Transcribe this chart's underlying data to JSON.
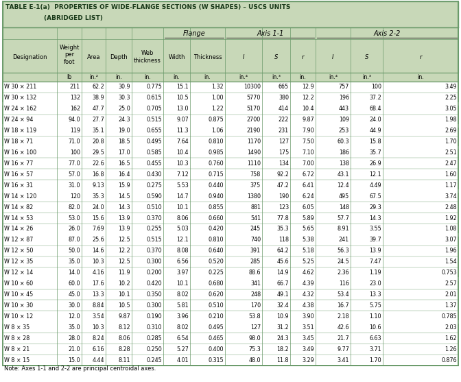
{
  "title_line1": "TABLE E-1(a)  PROPERTIES OF WIDE-FLANGE SECTIONS (W SHAPES) – USCS UNITS",
  "title_line2": "(ABRIDGED LIST)",
  "note": "Note: Axes 1-1 and 2-2 are principal centroidal axes.",
  "header_bg": "#c8d8b8",
  "border_color": "#6a9a6a",
  "col_units": [
    "",
    "lb",
    "in.²",
    "in.",
    "in.",
    "in.",
    "in.",
    "in.⁴",
    "in.³",
    "in.",
    "in.⁴",
    "in.³",
    "in."
  ],
  "rows": [
    [
      "W 30 × 211",
      "211",
      "62.2",
      "30.9",
      "0.775",
      "15.1",
      "1.32",
      "10300",
      "665",
      "12.9",
      "757",
      "100",
      "3.49"
    ],
    [
      "W 30 × 132",
      "132",
      "38.9",
      "30.3",
      "0.615",
      "10.5",
      "1.00",
      "5770",
      "380",
      "12.2",
      "196",
      "37.2",
      "2.25"
    ],
    [
      "W 24 × 162",
      "162",
      "47.7",
      "25.0",
      "0.705",
      "13.0",
      "1.22",
      "5170",
      "414",
      "10.4",
      "443",
      "68.4",
      "3.05"
    ],
    [
      "W 24 × 94",
      "94.0",
      "27.7",
      "24.3",
      "0.515",
      "9.07",
      "0.875",
      "2700",
      "222",
      "9.87",
      "109",
      "24.0",
      "1.98"
    ],
    [
      "W 18 × 119",
      "119",
      "35.1",
      "19.0",
      "0.655",
      "11.3",
      "1.06",
      "2190",
      "231",
      "7.90",
      "253",
      "44.9",
      "2.69"
    ],
    [
      "W 18 × 71",
      "71.0",
      "20.8",
      "18.5",
      "0.495",
      "7.64",
      "0.810",
      "1170",
      "127",
      "7.50",
      "60.3",
      "15.8",
      "1.70"
    ],
    [
      "W 16 × 100",
      "100",
      "29.5",
      "17.0",
      "0.585",
      "10.4",
      "0.985",
      "1490",
      "175",
      "7.10",
      "186",
      "35.7",
      "2.51"
    ],
    [
      "W 16 × 77",
      "77.0",
      "22.6",
      "16.5",
      "0.455",
      "10.3",
      "0.760",
      "1110",
      "134",
      "7.00",
      "138",
      "26.9",
      "2.47"
    ],
    [
      "W 16 × 57",
      "57.0",
      "16.8",
      "16.4",
      "0.430",
      "7.12",
      "0.715",
      "758",
      "92.2",
      "6.72",
      "43.1",
      "12.1",
      "1.60"
    ],
    [
      "W 16 × 31",
      "31.0",
      "9.13",
      "15.9",
      "0.275",
      "5.53",
      "0.440",
      "375",
      "47.2",
      "6.41",
      "12.4",
      "4.49",
      "1.17"
    ],
    [
      "W 14 × 120",
      "120",
      "35.3",
      "14.5",
      "0.590",
      "14.7",
      "0.940",
      "1380",
      "190",
      "6.24",
      "495",
      "67.5",
      "3.74"
    ],
    [
      "W 14 × 82",
      "82.0",
      "24.0",
      "14.3",
      "0.510",
      "10.1",
      "0.855",
      "881",
      "123",
      "6.05",
      "148",
      "29.3",
      "2.48"
    ],
    [
      "W 14 × 53",
      "53.0",
      "15.6",
      "13.9",
      "0.370",
      "8.06",
      "0.660",
      "541",
      "77.8",
      "5.89",
      "57.7",
      "14.3",
      "1.92"
    ],
    [
      "W 14 × 26",
      "26.0",
      "7.69",
      "13.9",
      "0.255",
      "5.03",
      "0.420",
      "245",
      "35.3",
      "5.65",
      "8.91",
      "3.55",
      "1.08"
    ],
    [
      "W 12 × 87",
      "87.0",
      "25.6",
      "12.5",
      "0.515",
      "12.1",
      "0.810",
      "740",
      "118",
      "5.38",
      "241",
      "39.7",
      "3.07"
    ],
    [
      "W 12 × 50",
      "50.0",
      "14.6",
      "12.2",
      "0.370",
      "8.08",
      "0.640",
      "391",
      "64.2",
      "5.18",
      "56.3",
      "13.9",
      "1.96"
    ],
    [
      "W 12 × 35",
      "35.0",
      "10.3",
      "12.5",
      "0.300",
      "6.56",
      "0.520",
      "285",
      "45.6",
      "5.25",
      "24.5",
      "7.47",
      "1.54"
    ],
    [
      "W 12 × 14",
      "14.0",
      "4.16",
      "11.9",
      "0.200",
      "3.97",
      "0.225",
      "88.6",
      "14.9",
      "4.62",
      "2.36",
      "1.19",
      "0.753"
    ],
    [
      "W 10 × 60",
      "60.0",
      "17.6",
      "10.2",
      "0.420",
      "10.1",
      "0.680",
      "341",
      "66.7",
      "4.39",
      "116",
      "23.0",
      "2.57"
    ],
    [
      "W 10 × 45",
      "45.0",
      "13.3",
      "10.1",
      "0.350",
      "8.02",
      "0.620",
      "248",
      "49.1",
      "4.32",
      "53.4",
      "13.3",
      "2.01"
    ],
    [
      "W 10 × 30",
      "30.0",
      "8.84",
      "10.5",
      "0.300",
      "5.81",
      "0.510",
      "170",
      "32.4",
      "4.38",
      "16.7",
      "5.75",
      "1.37"
    ],
    [
      "W 10 × 12",
      "12.0",
      "3.54",
      "9.87",
      "0.190",
      "3.96",
      "0.210",
      "53.8",
      "10.9",
      "3.90",
      "2.18",
      "1.10",
      "0.785"
    ],
    [
      "W 8 × 35",
      "35.0",
      "10.3",
      "8.12",
      "0.310",
      "8.02",
      "0.495",
      "127",
      "31.2",
      "3.51",
      "42.6",
      "10.6",
      "2.03"
    ],
    [
      "W 8 × 28",
      "28.0",
      "8.24",
      "8.06",
      "0.285",
      "6.54",
      "0.465",
      "98.0",
      "24.3",
      "3.45",
      "21.7",
      "6.63",
      "1.62"
    ],
    [
      "W 8 × 21",
      "21.0",
      "6.16",
      "8.28",
      "0.250",
      "5.27",
      "0.400",
      "75.3",
      "18.2",
      "3.49",
      "9.77",
      "3.71",
      "1.26"
    ],
    [
      "W 8 × 15",
      "15.0",
      "4.44",
      "8.11",
      "0.245",
      "4.01",
      "0.315",
      "48.0",
      "11.8",
      "3.29",
      "3.41",
      "1.70",
      "0.876"
    ]
  ],
  "group_separators": [
    2,
    4,
    6,
    10,
    14,
    18,
    22
  ],
  "figsize": [
    6.72,
    5.57
  ],
  "dpi": 100
}
